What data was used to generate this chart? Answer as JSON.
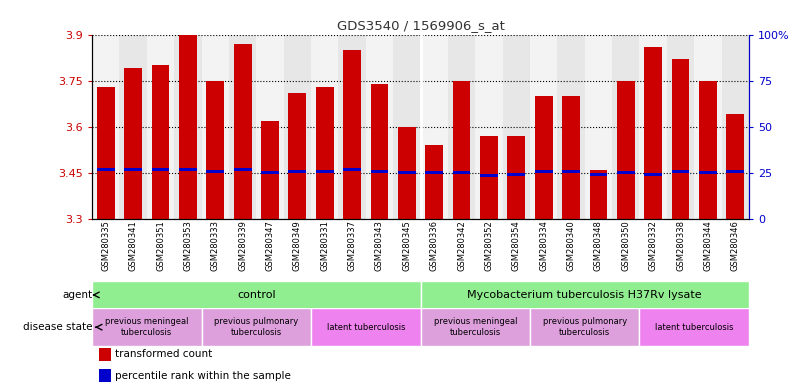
{
  "title": "GDS3540 / 1569906_s_at",
  "samples": [
    "GSM280335",
    "GSM280341",
    "GSM280351",
    "GSM280353",
    "GSM280333",
    "GSM280339",
    "GSM280347",
    "GSM280349",
    "GSM280331",
    "GSM280337",
    "GSM280343",
    "GSM280345",
    "GSM280336",
    "GSM280342",
    "GSM280352",
    "GSM280354",
    "GSM280334",
    "GSM280340",
    "GSM280348",
    "GSM280350",
    "GSM280332",
    "GSM280338",
    "GSM280344",
    "GSM280346"
  ],
  "bar_values": [
    3.73,
    3.79,
    3.8,
    3.9,
    3.75,
    3.87,
    3.62,
    3.71,
    3.73,
    3.85,
    3.74,
    3.6,
    3.54,
    3.75,
    3.57,
    3.57,
    3.7,
    3.7,
    3.46,
    3.75,
    3.86,
    3.82,
    3.75,
    3.64
  ],
  "percentile_values": [
    3.46,
    3.46,
    3.46,
    3.46,
    3.455,
    3.46,
    3.45,
    3.455,
    3.455,
    3.46,
    3.455,
    3.45,
    3.45,
    3.45,
    3.44,
    3.445,
    3.455,
    3.455,
    3.445,
    3.45,
    3.445,
    3.455,
    3.45,
    3.455
  ],
  "ymin": 3.3,
  "ymax": 3.9,
  "yticks": [
    3.3,
    3.45,
    3.6,
    3.75,
    3.9
  ],
  "ytick_labels": [
    "3.3",
    "3.45",
    "3.6",
    "3.75",
    "3.9"
  ],
  "right_yticks": [
    0,
    25,
    50,
    75,
    100
  ],
  "right_ytick_labels": [
    "0",
    "25",
    "50",
    "75",
    "100%"
  ],
  "bar_color": "#CC0000",
  "percentile_color": "#0000CC",
  "title_color": "#333333",
  "left_tick_color": "#CC0000",
  "right_tick_color": "#0000CC",
  "agent_groups": [
    {
      "label": "control",
      "start": 0,
      "end": 11,
      "color": "#90EE90"
    },
    {
      "label": "Mycobacterium tuberculosis H37Rv lysate",
      "start": 12,
      "end": 23,
      "color": "#90EE90"
    }
  ],
  "disease_groups": [
    {
      "label": "previous meningeal\ntuberculosis",
      "start": 0,
      "end": 3,
      "color": "#DDA0DD"
    },
    {
      "label": "previous pulmonary\ntuberculosis",
      "start": 4,
      "end": 7,
      "color": "#DDA0DD"
    },
    {
      "label": "latent tuberculosis",
      "start": 8,
      "end": 11,
      "color": "#EE82EE"
    },
    {
      "label": "previous meningeal\ntuberculosis",
      "start": 12,
      "end": 15,
      "color": "#DDA0DD"
    },
    {
      "label": "previous pulmonary\ntuberculosis",
      "start": 16,
      "end": 19,
      "color": "#DDA0DD"
    },
    {
      "label": "latent tuberculosis",
      "start": 20,
      "end": 23,
      "color": "#EE82EE"
    }
  ],
  "legend_items": [
    {
      "label": "transformed count",
      "color": "#CC0000"
    },
    {
      "label": "percentile rank within the sample",
      "color": "#0000CC"
    }
  ],
  "bg_colors": [
    "#e8e8e8",
    "#d0d0d0"
  ]
}
